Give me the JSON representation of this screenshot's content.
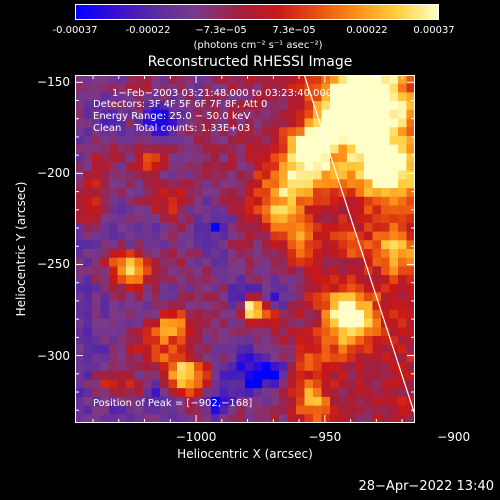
{
  "colorbar": {
    "tick_labels": [
      "-0.00037",
      "-0.00022",
      "−7.3e−05",
      "7.3e−05",
      "0.00022",
      "0.00037"
    ],
    "units": "(photons cm⁻² s⁻¹ asec⁻²)",
    "stops": [
      "#0000ff",
      "#3a10d0",
      "#5a2ca0",
      "#7a3a8a",
      "#a02040",
      "#c81818",
      "#e85010",
      "#ff9018",
      "#ffd040",
      "#ffffc8"
    ]
  },
  "chart_data": {
    "type": "heatmap",
    "title": "Reconstructed RHESSI Image",
    "xlabel": "Heliocentric X (arcsec)",
    "ylabel": "Heliocentric Y (arcsec)",
    "xlim": [
      -1047,
      -915
    ],
    "ylim": [
      -337,
      -146
    ],
    "x_ticks": [
      -1000,
      -950,
      -900
    ],
    "y_ticks": [
      -150,
      -200,
      -250,
      -300
    ],
    "x_tick_labels": [
      "−1000",
      "−950",
      "−900"
    ],
    "y_tick_labels": [
      "−150",
      "−200",
      "−250",
      "−300"
    ],
    "colorbar_range": [
      -0.00037,
      0.00037
    ],
    "limb_line": {
      "x": [
        -958,
        -914
      ],
      "y": [
        -146,
        -337
      ]
    },
    "peak": {
      "x": -902,
      "y": -168
    },
    "annotations": [
      "1−Feb−2003 03:21:48.000 to 03:23:40.000",
      "Detectors: 3F 4F 5F 6F 7F 8F, Att 0",
      "Energy Range: 25.0 − 50.0 keV",
      "Clean    Total counts: 1.33E+03",
      "Position of Peak = [−902,−168]"
    ]
  },
  "timestamp": "28−Apr−2022 13:40"
}
